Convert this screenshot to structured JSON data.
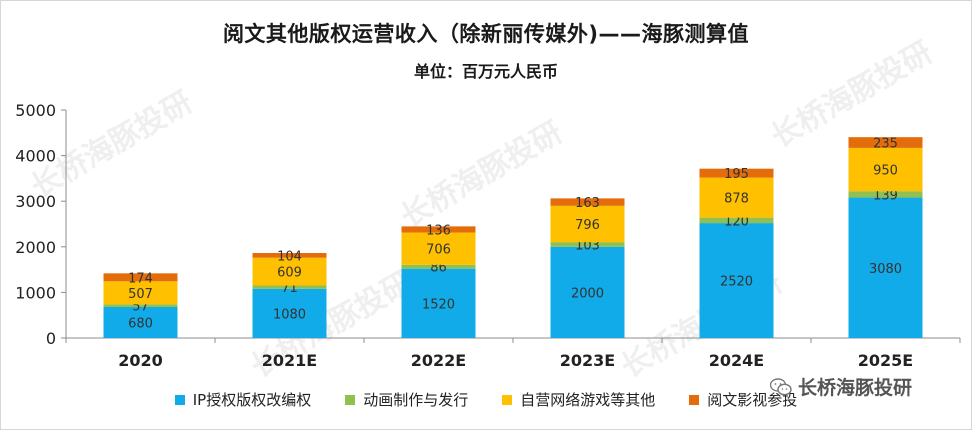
{
  "header": {
    "title": "阅文其他版权运营收入（除新丽传媒外)——海豚测算值",
    "subtitle": "单位：百万元人民币"
  },
  "brand": {
    "text": "长桥海豚投研",
    "icon": "wechat-icon"
  },
  "watermark": {
    "text": "长桥海豚投研"
  },
  "colors": {
    "ip": "#10ABE8",
    "animation": "#92C050",
    "games": "#FFC000",
    "film": "#E46C0A"
  },
  "chart_data": {
    "type": "bar",
    "stacked": true,
    "title": "阅文其他版权运营收入（除新丽传媒外)——海豚测算值",
    "subtitle": "单位：百万元人民币",
    "categories": [
      "2020",
      "2021E",
      "2022E",
      "2023E",
      "2024E",
      "2025E"
    ],
    "series": [
      {
        "name": "IP授权版权改编权",
        "color": "#10ABE8",
        "values": [
          680,
          1080,
          1520,
          2000,
          2520,
          3080
        ]
      },
      {
        "name": "动画制作与发行",
        "color": "#92C050",
        "values": [
          57,
          71,
          86,
          103,
          120,
          139
        ]
      },
      {
        "name": "自营网络游戏等其他",
        "color": "#FFC000",
        "values": [
          507,
          609,
          706,
          796,
          878,
          950
        ]
      },
      {
        "name": "阅文影视参投",
        "color": "#E46C0A",
        "values": [
          174,
          104,
          136,
          163,
          195,
          235
        ]
      }
    ],
    "ylim": [
      0,
      5000
    ],
    "yticks": [
      0,
      1000,
      2000,
      3000,
      4000,
      5000
    ],
    "grid": false,
    "legend": "bottom"
  }
}
